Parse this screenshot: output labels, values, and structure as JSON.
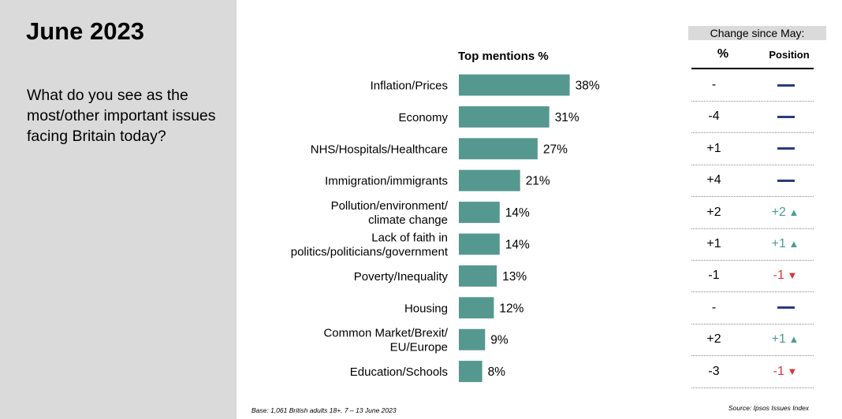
{
  "panel": {
    "title": "June 2023",
    "question": "What do you see as the most/other important issues facing Britain today?"
  },
  "colors": {
    "bar": "#55988f",
    "panel_bg": "#dadada",
    "no_change_dash": "#283c7e",
    "up": "#4e9b96",
    "down": "#e0323c"
  },
  "chart_data": {
    "type": "bar",
    "orientation": "horizontal",
    "title": "Top mentions %",
    "categories": [
      [
        "Inflation/Prices"
      ],
      [
        "Economy"
      ],
      [
        "NHS/Hospitals/Healthcare"
      ],
      [
        "Immigration/immigrants"
      ],
      [
        "Pollution/environment/",
        "climate change"
      ],
      [
        "Lack of faith in",
        "politics/politicians/government"
      ],
      [
        "Poverty/Inequality"
      ],
      [
        "Housing"
      ],
      [
        "Common Market/Brexit/",
        "EU/Europe"
      ],
      [
        "Education/Schools"
      ]
    ],
    "values": [
      38,
      31,
      27,
      21,
      14,
      14,
      13,
      12,
      9,
      8
    ],
    "value_labels": [
      "38%",
      "31%",
      "27%",
      "21%",
      "14%",
      "14%",
      "13%",
      "12%",
      "9%",
      "8%"
    ]
  },
  "change": {
    "header": "Change since May:",
    "col_pct": "%",
    "col_position": "Position",
    "rows": [
      {
        "pct": "-",
        "position": "",
        "arrow": "none"
      },
      {
        "pct": "-4",
        "position": "",
        "arrow": "none"
      },
      {
        "pct": "+1",
        "position": "",
        "arrow": "none"
      },
      {
        "pct": "+4",
        "position": "",
        "arrow": "none"
      },
      {
        "pct": "+2",
        "position": "+2",
        "arrow": "up"
      },
      {
        "pct": "+1",
        "position": "+1",
        "arrow": "up"
      },
      {
        "pct": "-1",
        "position": "-1",
        "arrow": "down"
      },
      {
        "pct": "-",
        "position": "",
        "arrow": "none"
      },
      {
        "pct": "+2",
        "position": "+1",
        "arrow": "up"
      },
      {
        "pct": "-3",
        "position": "-1",
        "arrow": "down"
      }
    ]
  },
  "footer": {
    "base": "Base: 1,061 British adults 18+, 7 – 13 June 2023",
    "source": "Source: Ipsos Issues Index"
  }
}
